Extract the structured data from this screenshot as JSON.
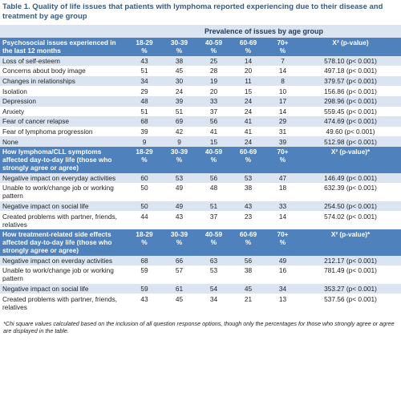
{
  "title": "Table 1. Quality of life issues that patients with lymphoma reported experiencing due to their disease and treatment by age group",
  "group_header": "Prevalence of issues by age group",
  "sections": [
    {
      "label": "Psychosocial issues experienced in the last 12 months",
      "columns": [
        [
          "18-29",
          "%"
        ],
        [
          "30-39",
          "%"
        ],
        [
          "40-59",
          "%"
        ],
        [
          "60-69",
          "%"
        ],
        [
          "70+",
          "%"
        ]
      ],
      "chi_header": "X² (p-value)",
      "rows": [
        {
          "label": "Loss of self-esteem",
          "values": [
            43,
            38,
            25,
            14,
            7
          ],
          "chi": "578.10 (p< 0.001)"
        },
        {
          "label": "Concerns about body image",
          "values": [
            51,
            45,
            28,
            20,
            14
          ],
          "chi": "497.18 (p< 0.001)"
        },
        {
          "label": "Changes in relationships",
          "values": [
            34,
            30,
            19,
            11,
            8
          ],
          "chi": "379.57 (p< 0.001)"
        },
        {
          "label": "Isolation",
          "values": [
            29,
            24,
            20,
            15,
            10
          ],
          "chi": "156.86 (p< 0.001)"
        },
        {
          "label": "Depression",
          "values": [
            48,
            39,
            33,
            24,
            17
          ],
          "chi": "298.96 (p< 0.001)"
        },
        {
          "label": "Anxiety",
          "values": [
            51,
            51,
            37,
            24,
            14
          ],
          "chi": "559.45 (p< 0.001)"
        },
        {
          "label": "Fear of cancer relapse",
          "values": [
            68,
            69,
            56,
            41,
            29
          ],
          "chi": "474.69 (p< 0.001)"
        },
        {
          "label": "Fear of lymphoma progression",
          "values": [
            39,
            42,
            41,
            41,
            31
          ],
          "chi": "49.60 (p< 0.001)"
        },
        {
          "label": "None",
          "values": [
            9,
            9,
            15,
            24,
            39
          ],
          "chi": "512.98 (p< 0.001)"
        }
      ]
    },
    {
      "label": "How lymphoma/CLL symptoms affected day-to-day life (those who strongly agree or agree)",
      "columns": [
        [
          "18-29",
          "%"
        ],
        [
          "30-39",
          "%"
        ],
        [
          "40-59",
          "%"
        ],
        [
          "60-69",
          "%"
        ],
        [
          "70+",
          "%"
        ]
      ],
      "chi_header": "X² (p-value)*",
      "rows": [
        {
          "label": "Negative impact on everyday activities",
          "values": [
            60,
            53,
            56,
            53,
            47
          ],
          "chi": "146.49 (p< 0.001)"
        },
        {
          "label": "Unable to work/change job or working pattern",
          "values": [
            50,
            49,
            48,
            38,
            18
          ],
          "chi": "632.39 (p< 0.001)"
        },
        {
          "label": "Negative impact on social life",
          "values": [
            50,
            49,
            51,
            43,
            33
          ],
          "chi": "254.50 (p< 0.001)"
        },
        {
          "label": "Created problems with partner, friends, relatives",
          "values": [
            44,
            43,
            37,
            23,
            14
          ],
          "chi": "574.02 (p< 0.001)"
        }
      ]
    },
    {
      "label": "How treatment-related side effects affected day-to-day life (those who strongly agree or agree)",
      "columns": [
        [
          "18-29",
          "%"
        ],
        [
          "30-39",
          "%"
        ],
        [
          "40-59",
          "%"
        ],
        [
          "60-69",
          "%"
        ],
        [
          "70+",
          "%"
        ]
      ],
      "chi_header": "X² (p-value)*",
      "rows": [
        {
          "label": "Negative impact on everday activities",
          "values": [
            68,
            66,
            63,
            56,
            49
          ],
          "chi": "212.17 (p< 0.001)"
        },
        {
          "label": "Unable to work/change job or working pattern",
          "values": [
            59,
            57,
            53,
            38,
            16
          ],
          "chi": "781.49 (p< 0.001)"
        },
        {
          "label": "Negative impact on social life",
          "values": [
            59,
            61,
            54,
            45,
            34
          ],
          "chi": "353.27 (p< 0.001)"
        },
        {
          "label": "Created problems with partner, friends, relatives",
          "values": [
            43,
            45,
            34,
            21,
            13
          ],
          "chi": "537.56 (p< 0.001)"
        }
      ]
    }
  ],
  "footnote": "*Chi square values calculated based on the inclusion of all question response options, though only the percentages for those who strongly agree or agree are displayed in the table."
}
